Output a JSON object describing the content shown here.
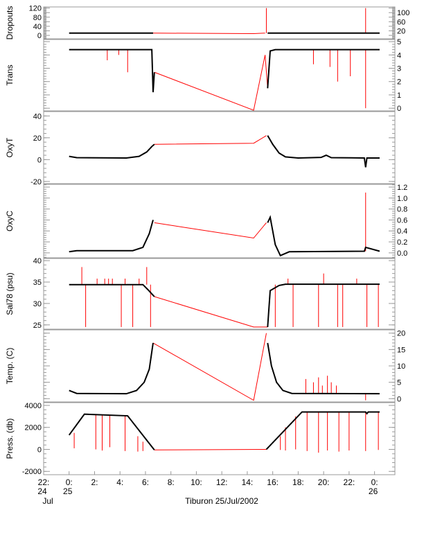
{
  "chart_data": {
    "type": "line",
    "title": "Tiburon 25/Jul/2002",
    "xlabel": "Tiburon 25/Jul/2002",
    "x_units": "hours since 0:00 25 Jul",
    "xlim": [
      -2,
      25.6
    ],
    "x_ticks": [
      {
        "h": -2,
        "l1": "22:",
        "l2": "24",
        "l3": "Jul"
      },
      {
        "h": 0,
        "l1": "0:",
        "l2": "25",
        "l3": ""
      },
      {
        "h": 2,
        "l1": "2:",
        "l2": "",
        "l3": ""
      },
      {
        "h": 4,
        "l1": "4:",
        "l2": "",
        "l3": ""
      },
      {
        "h": 6,
        "l1": "6:",
        "l2": "",
        "l3": ""
      },
      {
        "h": 8,
        "l1": "8:",
        "l2": "",
        "l3": ""
      },
      {
        "h": 10,
        "l1": "10:",
        "l2": "",
        "l3": ""
      },
      {
        "h": 12,
        "l1": "12:",
        "l2": "",
        "l3": ""
      },
      {
        "h": 14,
        "l1": "14:",
        "l2": "",
        "l3": ""
      },
      {
        "h": 16,
        "l1": "16:",
        "l2": "",
        "l3": ""
      },
      {
        "h": 18,
        "l1": "18:",
        "l2": "",
        "l3": ""
      },
      {
        "h": 20,
        "l1": "20:",
        "l2": "",
        "l3": ""
      },
      {
        "h": 22,
        "l1": "22:",
        "l2": "",
        "l3": ""
      },
      {
        "h": 24,
        "l1": "0:",
        "l2": "26",
        "l3": ""
      }
    ],
    "colors": {
      "data": "#000000",
      "gap": "#ff0000"
    },
    "panels": [
      {
        "name": "dropouts",
        "ylabel": "Dropouts",
        "ylim": [
          -15,
          125
        ],
        "ticks": [
          0,
          20,
          40,
          60,
          80,
          100,
          120
        ],
        "tick_labels": [
          "0",
          "20",
          "40",
          "60",
          "80",
          "100",
          "120"
        ],
        "black": [
          [
            [
              0,
              10
            ],
            [
              6.6,
              10
            ]
          ],
          [
            [
              15.6,
              10
            ],
            [
              24.4,
              10
            ]
          ]
        ],
        "red": [
          [
            6.6,
            10
          ],
          [
            14.5,
            8
          ],
          [
            15.4,
            10
          ]
        ],
        "spikes": [
          [
            15.5,
            10,
            120
          ],
          [
            23.3,
            10,
            120
          ]
        ]
      },
      {
        "name": "trans",
        "ylabel": "Trans",
        "ylim": [
          -0.2,
          5.16
        ],
        "ticks": [
          0,
          1,
          2,
          3,
          4,
          5
        ],
        "tick_labels": [
          "0",
          "1",
          "2",
          "3",
          "4",
          "5"
        ],
        "black": [
          [
            [
              0,
              4.4
            ],
            [
              6.5,
              4.4
            ],
            [
              6.6,
              1.2
            ],
            [
              6.7,
              2.7
            ]
          ],
          [
            [
              15.6,
              1.5
            ],
            [
              15.8,
              4.3
            ],
            [
              16.2,
              4.4
            ],
            [
              24.4,
              4.4
            ]
          ]
        ],
        "red": [
          [
            6.7,
            2.7
          ],
          [
            14.5,
            -0.15
          ],
          [
            15.4,
            4.0
          ],
          [
            15.6,
            1.5
          ]
        ],
        "spikes": [
          [
            3.0,
            4.4,
            3.6
          ],
          [
            3.9,
            4.4,
            4.0
          ],
          [
            4.6,
            4.4,
            2.7
          ],
          [
            19.2,
            4.4,
            3.3
          ],
          [
            20.5,
            4.4,
            3.1
          ],
          [
            21.1,
            4.4,
            2.0
          ],
          [
            22.1,
            4.4,
            2.4
          ],
          [
            23.3,
            4.4,
            0.0
          ]
        ]
      },
      {
        "name": "oxyt",
        "ylabel": "OxyT",
        "ylim": [
          -22,
          44
        ],
        "ticks": [
          -20,
          0,
          20,
          40
        ],
        "tick_labels": [
          "-20",
          "0",
          "20",
          "40"
        ],
        "black": [
          [
            [
              0,
              3
            ],
            [
              0.6,
              1.8
            ],
            [
              4.5,
              1.5
            ],
            [
              5.5,
              3
            ],
            [
              6.1,
              7
            ],
            [
              6.5,
              12
            ],
            [
              6.7,
              14
            ]
          ],
          [
            [
              15.6,
              22
            ],
            [
              16,
              14
            ],
            [
              16.5,
              6
            ],
            [
              17,
              2.5
            ],
            [
              18,
              1.5
            ],
            [
              19.8,
              2
            ],
            [
              20.2,
              4
            ],
            [
              20.6,
              1.8
            ],
            [
              23.2,
              1.5
            ],
            [
              23.3,
              -7
            ],
            [
              23.4,
              1.5
            ],
            [
              24.4,
              1.5
            ]
          ]
        ],
        "red": [
          [
            6.7,
            14
          ],
          [
            14.5,
            15
          ],
          [
            15.5,
            22
          ]
        ],
        "spikes": []
      },
      {
        "name": "oxyc",
        "ylabel": "OxyC",
        "ylim": [
          -0.09,
          1.25
        ],
        "ticks": [
          0,
          0.2,
          0.4,
          0.6,
          0.8,
          1.0,
          1.2
        ],
        "tick_labels": [
          "0.0",
          "0.2",
          "0.4",
          "0.6",
          "0.8",
          "1.0",
          "1.2"
        ],
        "black": [
          [
            [
              0,
              0.02
            ],
            [
              0.6,
              0.04
            ],
            [
              5,
              0.04
            ],
            [
              5.8,
              0.1
            ],
            [
              6.3,
              0.35
            ],
            [
              6.6,
              0.6
            ]
          ],
          [
            [
              15.6,
              0.55
            ],
            [
              15.8,
              0.65
            ],
            [
              16.2,
              0.15
            ],
            [
              16.6,
              -0.05
            ],
            [
              17.3,
              0.02
            ],
            [
              23.2,
              0.03
            ],
            [
              23.3,
              0.1
            ],
            [
              24.4,
              0.03
            ]
          ]
        ],
        "red": [
          [
            6.7,
            0.55
          ],
          [
            14.5,
            0.27
          ],
          [
            15.5,
            0.55
          ]
        ],
        "spikes": [
          [
            23.3,
            0.03,
            1.1
          ]
        ]
      },
      {
        "name": "sal78",
        "ylabel": "Sal78 (psu)",
        "ylim": [
          24.0,
          40.5
        ],
        "ticks": [
          25,
          30,
          35,
          40
        ],
        "tick_labels": [
          "25",
          "30",
          "35",
          "40"
        ],
        "black": [
          [
            [
              0,
              34.4
            ],
            [
              5.8,
              34.4
            ],
            [
              6.2,
              33.2
            ],
            [
              6.7,
              31.6
            ]
          ],
          [
            [
              15.6,
              24.5
            ],
            [
              15.8,
              33
            ],
            [
              16.5,
              34.2
            ],
            [
              17,
              34.5
            ],
            [
              24.4,
              34.5
            ]
          ]
        ],
        "red": [
          [
            6.7,
            31.6
          ],
          [
            14.5,
            24.5
          ],
          [
            15.6,
            24.5
          ]
        ],
        "spikes": [
          [
            1.0,
            34.4,
            38.5
          ],
          [
            1.3,
            34.4,
            24.5
          ],
          [
            2.2,
            34.4,
            35.8
          ],
          [
            2.8,
            34.4,
            35.8
          ],
          [
            3.1,
            34.4,
            35.8
          ],
          [
            3.4,
            34.4,
            35.8
          ],
          [
            4.1,
            34.4,
            24.5
          ],
          [
            4.4,
            34.4,
            35.8
          ],
          [
            5.0,
            34.4,
            24.5
          ],
          [
            5.5,
            34.4,
            35.8
          ],
          [
            6.1,
            34.4,
            38.5
          ],
          [
            6.4,
            34.4,
            24.5
          ],
          [
            16.2,
            34.4,
            24.5
          ],
          [
            17.2,
            34.4,
            35.8
          ],
          [
            17.6,
            34.4,
            24.5
          ],
          [
            19.6,
            34.4,
            24.5
          ],
          [
            20.0,
            34.4,
            37
          ],
          [
            21.1,
            34.4,
            24.5
          ],
          [
            21.5,
            34.4,
            24.5
          ],
          [
            22.6,
            34.4,
            35.8
          ],
          [
            23.4,
            34.4,
            24.5
          ],
          [
            24.3,
            34.4,
            24.5
          ]
        ]
      },
      {
        "name": "temp",
        "ylabel": "Temp. (C)",
        "ylim": [
          -1,
          21
        ],
        "ticks": [
          0,
          5,
          10,
          15,
          20
        ],
        "tick_labels": [
          "0",
          "5",
          "10",
          "15",
          "20"
        ],
        "black": [
          [
            [
              0,
              2.5
            ],
            [
              0.6,
              1.6
            ],
            [
              4.5,
              1.5
            ],
            [
              5.3,
              2.5
            ],
            [
              5.9,
              5
            ],
            [
              6.3,
              9
            ],
            [
              6.6,
              17
            ]
          ],
          [
            [
              15.6,
              17
            ],
            [
              15.9,
              10
            ],
            [
              16.3,
              5
            ],
            [
              16.8,
              2.5
            ],
            [
              17.5,
              1.6
            ],
            [
              24.4,
              1.5
            ]
          ]
        ],
        "red": [
          [
            6.6,
            17
          ],
          [
            14.5,
            -0.5
          ],
          [
            15.5,
            20
          ]
        ],
        "spikes": [
          [
            18.6,
            1.5,
            6
          ],
          [
            19.2,
            1.5,
            5
          ],
          [
            19.6,
            1.5,
            6.5
          ],
          [
            19.9,
            1.5,
            4
          ],
          [
            20.3,
            1.5,
            7
          ],
          [
            20.6,
            1.5,
            5
          ],
          [
            21.0,
            1.5,
            4
          ],
          [
            23.3,
            1.5,
            -0.5
          ]
        ]
      },
      {
        "name": "press",
        "ylabel": "Press. (db)",
        "ylim": [
          -2300,
          4250
        ],
        "ticks": [
          -2000,
          0,
          2000,
          4000
        ],
        "tick_labels": [
          "-2000",
          "0",
          "2000",
          "4000"
        ],
        "black": [
          [
            [
              0,
              1300
            ],
            [
              1.2,
              3200
            ],
            [
              4.6,
              3050
            ],
            [
              6.7,
              -50
            ]
          ],
          [
            [
              15.5,
              0
            ],
            [
              18.3,
              3400
            ],
            [
              23.3,
              3400
            ],
            [
              23.4,
              3250
            ],
            [
              23.5,
              3400
            ],
            [
              24.4,
              3400
            ]
          ]
        ],
        "red": [
          [
            6.7,
            -50
          ],
          [
            15.5,
            0
          ]
        ],
        "spikes": [
          [
            0.4,
            1500,
            100
          ],
          [
            2.1,
            3150,
            0
          ],
          [
            2.6,
            3150,
            -100
          ],
          [
            3.2,
            3100,
            200
          ],
          [
            4.4,
            3050,
            -150
          ],
          [
            5.4,
            1200,
            -200
          ],
          [
            5.8,
            700,
            -150
          ],
          [
            16.6,
            1200,
            -50
          ],
          [
            17.0,
            2000,
            -100
          ],
          [
            17.8,
            3000,
            0
          ],
          [
            18.7,
            3400,
            -150
          ],
          [
            19.6,
            3400,
            -300
          ],
          [
            20.3,
            3400,
            -100
          ],
          [
            21.2,
            3400,
            -200
          ],
          [
            22.0,
            3400,
            -100
          ],
          [
            23.3,
            3400,
            -150
          ],
          [
            24.3,
            3400,
            -50
          ]
        ]
      }
    ]
  }
}
